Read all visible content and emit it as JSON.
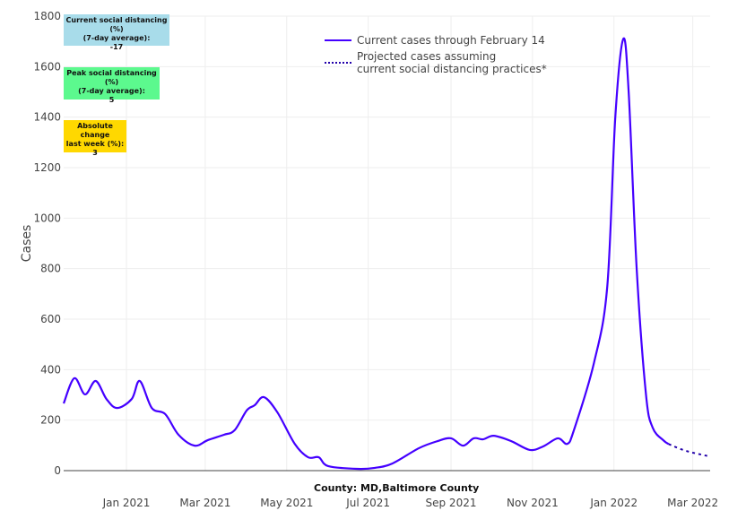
{
  "chart_data": {
    "type": "line",
    "ylabel": "Cases",
    "xlabel": "County: MD,Baltimore County",
    "ylim": [
      0,
      1800
    ],
    "xlim": [
      "2020-11-15",
      "2022-03-14"
    ],
    "yticks": [
      0,
      200,
      400,
      600,
      800,
      1000,
      1200,
      1400,
      1600,
      1800
    ],
    "xticks": [
      {
        "date": "2021-01-01",
        "label": "Jan 2021"
      },
      {
        "date": "2021-03-01",
        "label": "Mar 2021"
      },
      {
        "date": "2021-05-01",
        "label": "May 2021"
      },
      {
        "date": "2021-07-01",
        "label": "Jul 2021"
      },
      {
        "date": "2021-09-01",
        "label": "Sep 2021"
      },
      {
        "date": "2021-11-01",
        "label": "Nov 2021"
      },
      {
        "date": "2022-01-01",
        "label": "Jan 2022"
      },
      {
        "date": "2022-03-01",
        "label": "Mar 2022"
      }
    ],
    "grid": true,
    "legend_placement": "top-center",
    "series": [
      {
        "name": "Current cases through February 14",
        "style": "solid",
        "color": "#4400ff",
        "points": [
          [
            "2020-11-15",
            266
          ],
          [
            "2020-11-23",
            366
          ],
          [
            "2020-12-01",
            302
          ],
          [
            "2020-12-09",
            355
          ],
          [
            "2020-12-17",
            284
          ],
          [
            "2020-12-25",
            248
          ],
          [
            "2021-01-05",
            284
          ],
          [
            "2021-01-11",
            355
          ],
          [
            "2021-01-20",
            248
          ],
          [
            "2021-01-30",
            224
          ],
          [
            "2021-02-09",
            142
          ],
          [
            "2021-02-21",
            99
          ],
          [
            "2021-03-03",
            121
          ],
          [
            "2021-03-15",
            142
          ],
          [
            "2021-03-23",
            160
          ],
          [
            "2021-04-01",
            238
          ],
          [
            "2021-04-07",
            259
          ],
          [
            "2021-04-14",
            291
          ],
          [
            "2021-04-24",
            231
          ],
          [
            "2021-05-07",
            106
          ],
          [
            "2021-05-17",
            53
          ],
          [
            "2021-05-25",
            53
          ],
          [
            "2021-06-01",
            18
          ],
          [
            "2021-06-23",
            7
          ],
          [
            "2021-07-06",
            11
          ],
          [
            "2021-07-19",
            28
          ],
          [
            "2021-08-08",
            89
          ],
          [
            "2021-08-22",
            117
          ],
          [
            "2021-09-01",
            128
          ],
          [
            "2021-09-10",
            99
          ],
          [
            "2021-09-18",
            128
          ],
          [
            "2021-09-25",
            124
          ],
          [
            "2021-10-03",
            138
          ],
          [
            "2021-10-16",
            117
          ],
          [
            "2021-10-30",
            82
          ],
          [
            "2021-11-09",
            96
          ],
          [
            "2021-11-20",
            128
          ],
          [
            "2021-11-27",
            106
          ],
          [
            "2021-12-02",
            160
          ],
          [
            "2021-12-17",
            426
          ],
          [
            "2021-12-27",
            730
          ],
          [
            "2022-01-02",
            1400
          ],
          [
            "2022-01-08",
            1710
          ],
          [
            "2022-01-12",
            1500
          ],
          [
            "2022-01-18",
            800
          ],
          [
            "2022-01-25",
            300
          ],
          [
            "2022-01-30",
            170
          ],
          [
            "2022-02-07",
            120
          ],
          [
            "2022-02-11",
            105
          ]
        ]
      },
      {
        "name": "Projected cases assuming current social distancing practices*",
        "name_lines": [
          "Projected cases assuming",
          "current social distancing practices*"
        ],
        "style": "dotted",
        "color": "#2200aa",
        "points": [
          [
            "2022-02-11",
            105
          ],
          [
            "2022-02-24",
            78
          ],
          [
            "2022-03-13",
            57
          ]
        ]
      }
    ]
  },
  "annotations": [
    {
      "lines": [
        "Current social distancing (%)",
        "(7-day average):",
        "-17"
      ],
      "color": "#a8dcea"
    },
    {
      "lines": [
        "Peak social distancing (%)",
        "(7-day average):",
        "5"
      ],
      "color": "#5cf98e"
    },
    {
      "lines": [
        "Absolute change",
        "last week (%):",
        "3"
      ],
      "color": "#ffd800"
    }
  ]
}
